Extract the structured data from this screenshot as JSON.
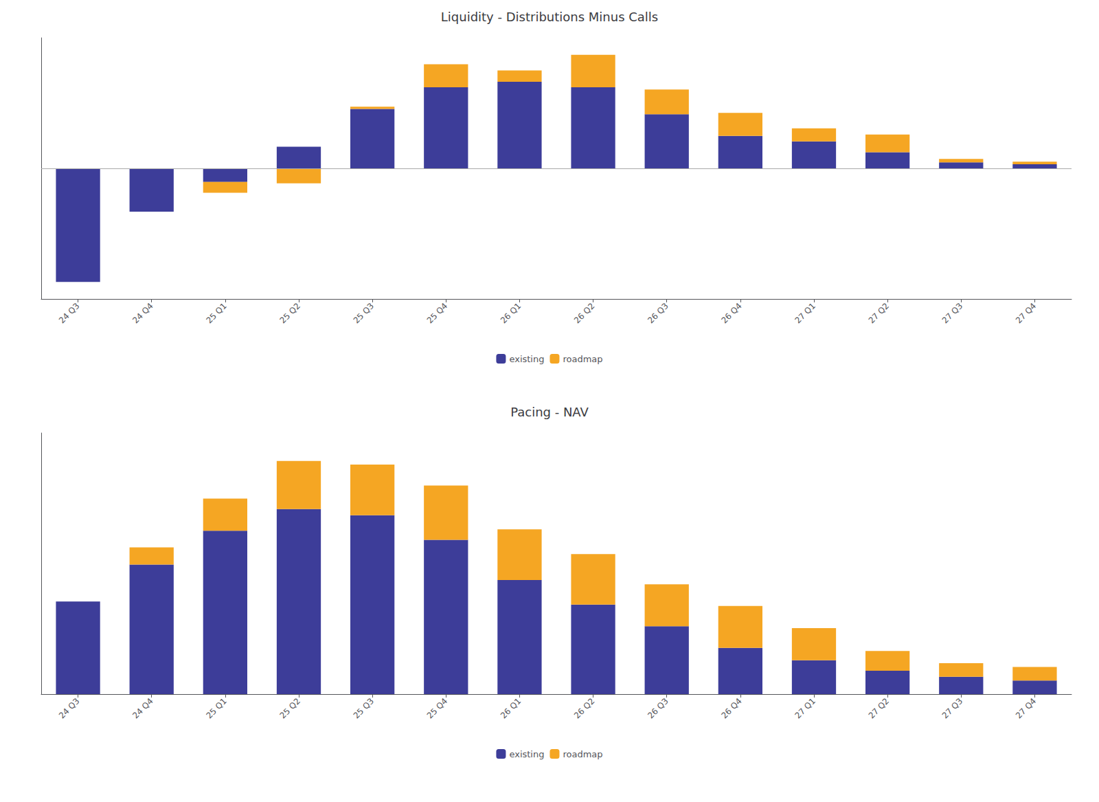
{
  "chart_data": [
    {
      "type": "bar",
      "title": "Liquidity - Distributions Minus Calls",
      "categories": [
        "24 Q3",
        "24 Q4",
        "25 Q1",
        "25 Q2",
        "25 Q3",
        "25 Q4",
        "26 Q1",
        "26 Q2",
        "26 Q3",
        "26 Q4",
        "27 Q1",
        "27 Q2",
        "27 Q3",
        "27 Q4"
      ],
      "series": [
        {
          "name": "existing",
          "color": "#3d3d99",
          "values": [
            -4.2,
            -1.6,
            -0.5,
            0.8,
            2.2,
            3.0,
            3.2,
            3.0,
            2.0,
            1.2,
            1.0,
            0.6,
            0.22,
            0.15
          ]
        },
        {
          "name": "roadmap",
          "color": "#f5a623",
          "values": [
            0.0,
            0.0,
            -0.4,
            -0.55,
            0.08,
            0.85,
            0.42,
            1.2,
            0.92,
            0.85,
            0.48,
            0.65,
            0.13,
            0.1
          ]
        }
      ],
      "stacked": true,
      "ylim": [
        -4.83,
        4.83
      ],
      "grid": false,
      "legend": "bottom",
      "tick_labels": "x"
    },
    {
      "type": "bar",
      "title": "Pacing - NAV",
      "categories": [
        "24 Q3",
        "24 Q4",
        "25 Q1",
        "25 Q2",
        "25 Q3",
        "25 Q4",
        "26 Q1",
        "26 Q2",
        "26 Q3",
        "26 Q4",
        "27 Q1",
        "27 Q2",
        "27 Q3",
        "27 Q4"
      ],
      "series": [
        {
          "name": "existing",
          "color": "#3d3d99",
          "values": [
            1.5,
            2.1,
            2.65,
            3.0,
            2.9,
            2.5,
            1.85,
            1.45,
            1.1,
            0.75,
            0.55,
            0.38,
            0.28,
            0.22
          ]
        },
        {
          "name": "roadmap",
          "color": "#f5a623",
          "values": [
            0.0,
            0.28,
            0.52,
            0.78,
            0.82,
            0.88,
            0.82,
            0.82,
            0.68,
            0.68,
            0.52,
            0.32,
            0.22,
            0.22
          ]
        }
      ],
      "stacked": true,
      "ylim": [
        0,
        4.2336
      ],
      "grid": false,
      "legend": "bottom",
      "tick_labels": "x"
    }
  ]
}
